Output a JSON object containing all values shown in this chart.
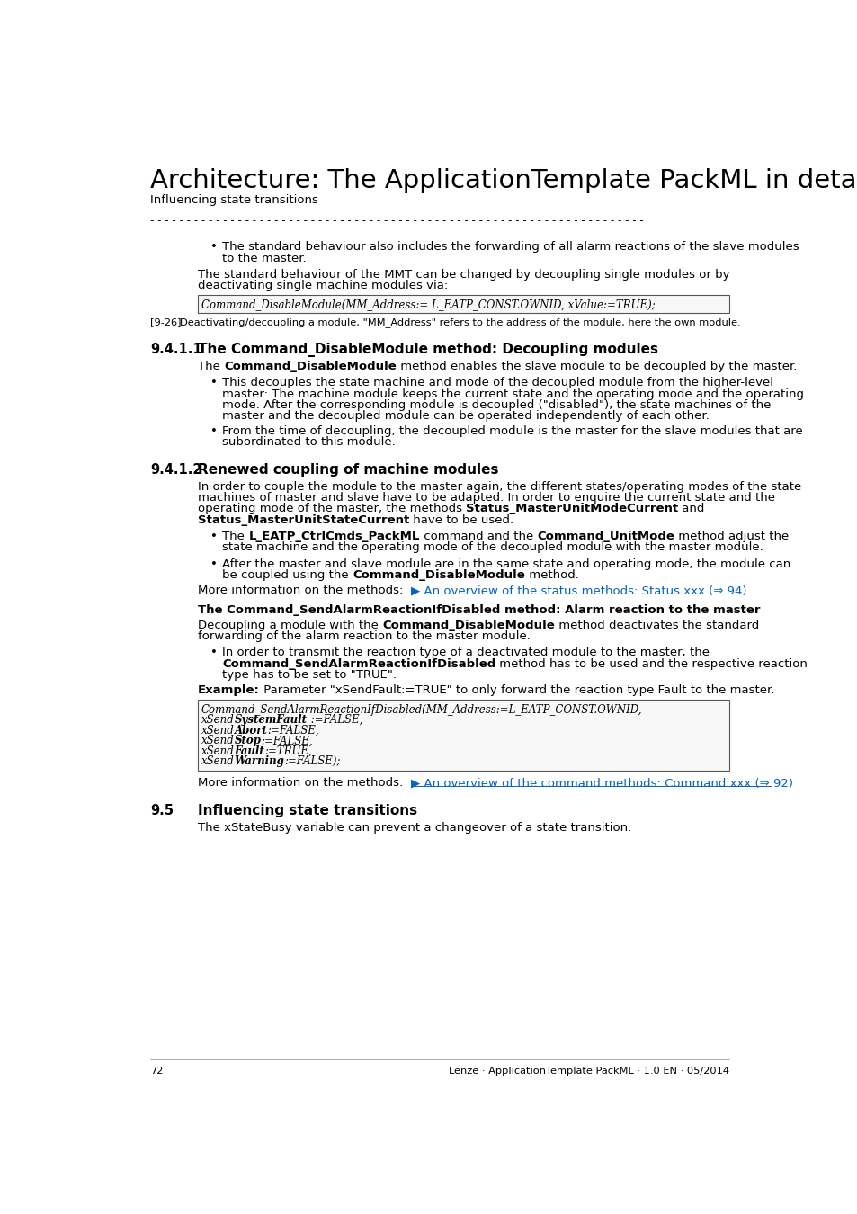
{
  "title": "Architecture: The ApplicationTemplate PackML in detail",
  "subtitle": "Influencing state transitions",
  "page_number": "72",
  "footer_text": "Lenze · ApplicationTemplate PackML · 1.0 EN · 05/2014",
  "bg_color": "#ffffff",
  "text_color": "#000000",
  "link_color": "#0563C1"
}
